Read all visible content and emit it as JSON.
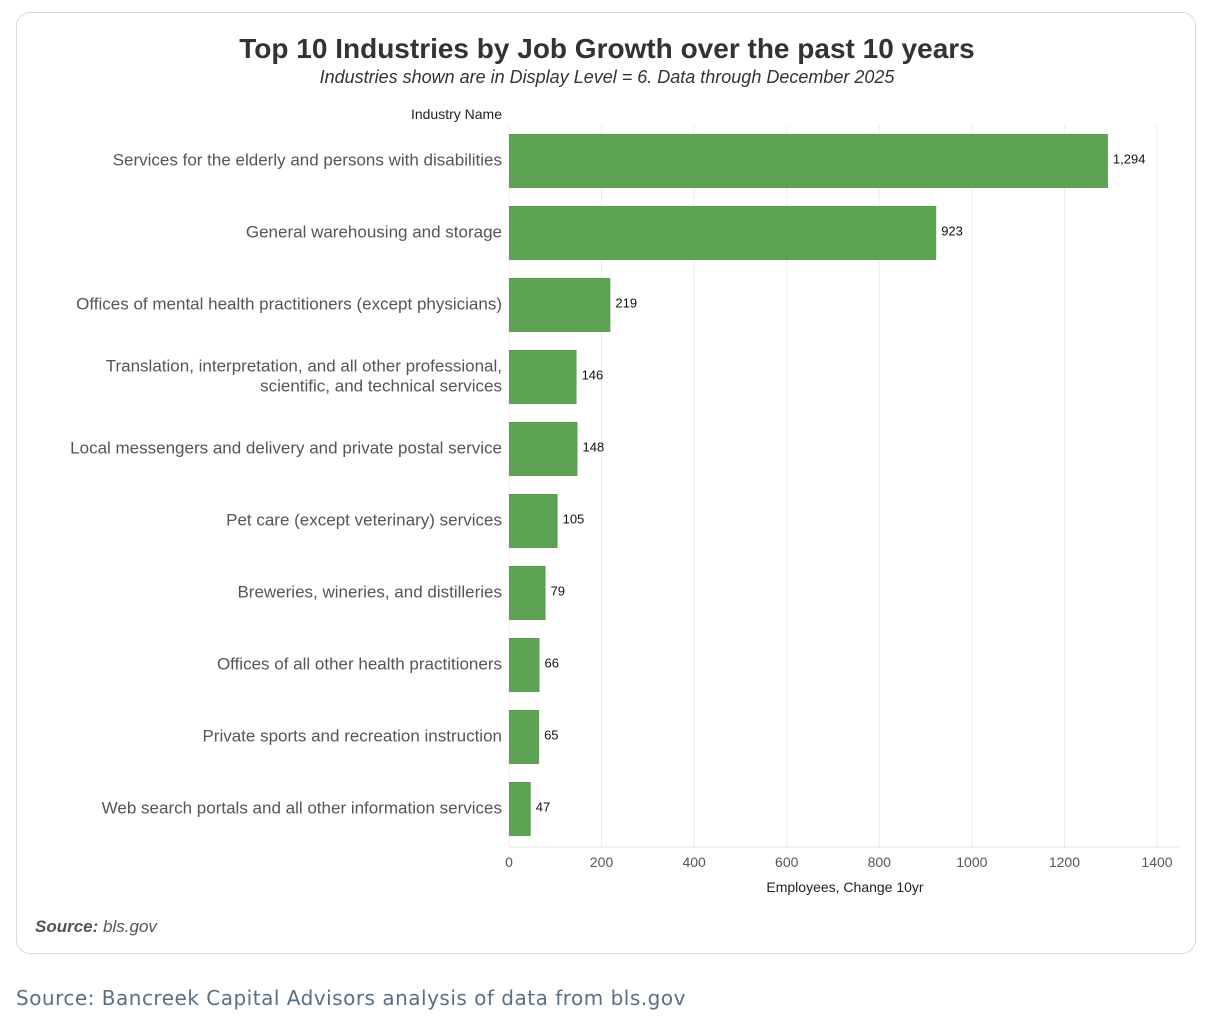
{
  "chart_data": {
    "type": "bar",
    "orientation": "horizontal",
    "title": "Top 10 Industries by Job Growth over the past 10 years",
    "subtitle": "Industries shown are in Display Level = 6. Data through December 2025",
    "y_axis_title": "Industry Name",
    "xlabel": "Employees, Change 10yr",
    "xlim": [
      0,
      1400
    ],
    "xticks": [
      "0",
      "200",
      "400",
      "600",
      "800",
      "1000",
      "1200",
      "1400"
    ],
    "xtick_values": [
      0,
      200,
      400,
      600,
      800,
      1000,
      1200,
      1400
    ],
    "grid": true,
    "bar_color": "#5ba352",
    "categories": [
      [
        "Services for the elderly and persons with disabilities"
      ],
      [
        "General warehousing and storage"
      ],
      [
        "Offices of mental health practitioners (except physicians)"
      ],
      [
        "Translation, interpretation, and all other professional,",
        "scientific, and technical services"
      ],
      [
        "Local messengers and delivery and private postal service"
      ],
      [
        "Pet care (except veterinary) services"
      ],
      [
        "Breweries, wineries, and distilleries"
      ],
      [
        "Offices of all other health practitioners"
      ],
      [
        "Private sports and recreation instruction"
      ],
      [
        "Web search portals and all other information services"
      ]
    ],
    "values": [
      1294,
      923,
      219,
      146,
      148,
      105,
      79,
      66,
      65,
      47
    ],
    "value_labels": [
      "1,294",
      "923",
      "219",
      "146",
      "148",
      "105",
      "79",
      "66",
      "65",
      "47"
    ]
  },
  "source": {
    "label": "Source:",
    "text": "bls.gov"
  },
  "caption": "Source: Bancreek Capital Advisors analysis of data from bls.gov"
}
